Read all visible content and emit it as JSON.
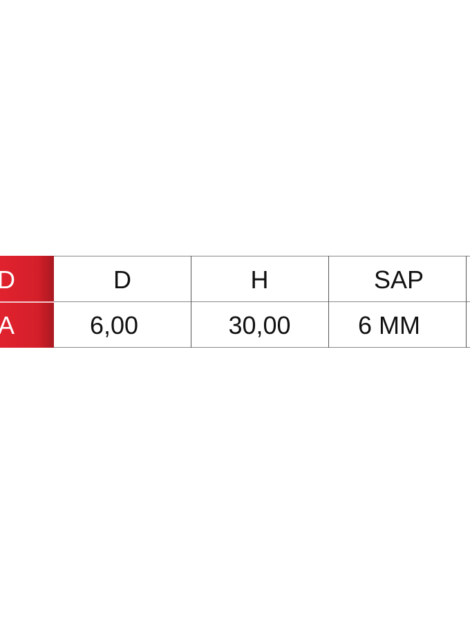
{
  "table": {
    "row_labels": [
      "D",
      "A"
    ],
    "headers": [
      "D",
      "H",
      "SAP"
    ],
    "values": [
      "6,00",
      "30,00",
      "6 MM"
    ],
    "accent_color": "#d41f2a"
  }
}
